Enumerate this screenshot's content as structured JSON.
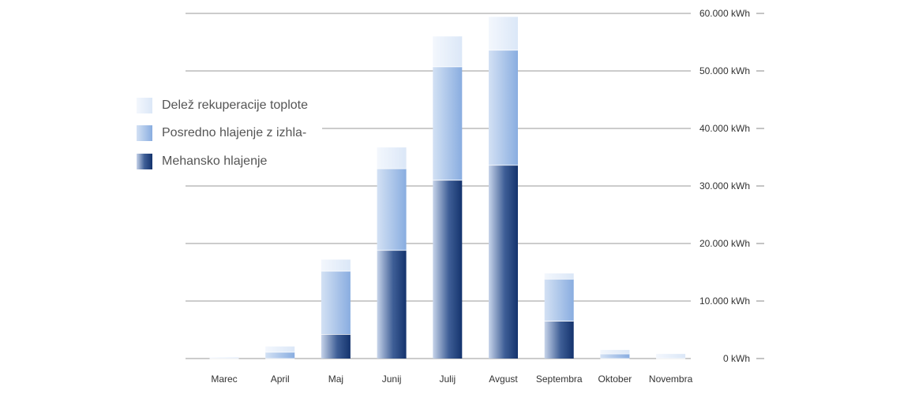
{
  "chart_data": {
    "type": "bar",
    "stacked": true,
    "categories": [
      "Marec",
      "April",
      "Maj",
      "Junij",
      "Julij",
      "Avgust",
      "Septembra",
      "Oktober",
      "Novembra"
    ],
    "series": [
      {
        "name": "Mehansko hlajenje",
        "values": [
          0,
          0,
          4200,
          18800,
          31000,
          33600,
          6500,
          0,
          0
        ],
        "color": "#1f3f7a"
      },
      {
        "name": "Posredno hlajenje z izhla-",
        "values": [
          0,
          1100,
          11000,
          14200,
          19700,
          20000,
          7300,
          800,
          0
        ],
        "color": "#8fb3e0"
      },
      {
        "name": "Delež rekuperacije toplote",
        "values": [
          200,
          1000,
          2000,
          3700,
          5300,
          5800,
          1000,
          700,
          800
        ],
        "color": "#dce8f7"
      }
    ],
    "ylim": [
      0,
      60000
    ],
    "yticks": [
      "0 kWh",
      "10.000 kWh",
      "20.000 kWh",
      "30.000 kWh",
      "40.000 kWh",
      "50.000 kWh",
      "60.000 kWh"
    ],
    "ytick_values": [
      0,
      10000,
      20000,
      30000,
      40000,
      50000,
      60000
    ],
    "y_axis_side": "right",
    "grid": true,
    "legend_position": "left"
  },
  "legend": {
    "items": [
      {
        "label": "Delež rekuperacije toplote",
        "color": "#dce8f7"
      },
      {
        "label": "Posredno hlajenje z izhla-",
        "color": "#8fb3e0"
      },
      {
        "label": "Mehansko hlajenje",
        "color": "#1f3f7a"
      }
    ]
  }
}
